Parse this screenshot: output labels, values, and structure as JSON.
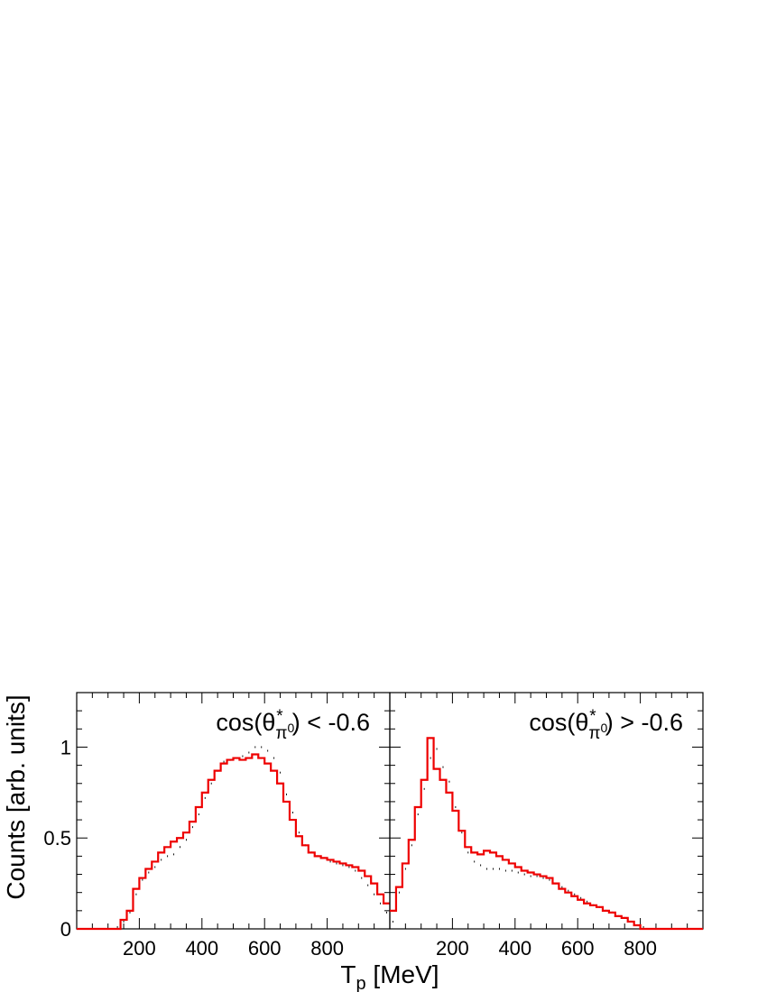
{
  "chart_data": [
    {
      "type": "histogram",
      "panel_label": {
        "prefix": "cos(θ",
        "sub": "π",
        "sup": "0",
        "star": "*",
        "suffix": ") < -0.6"
      },
      "ylabel": "Counts [arb. units]",
      "xlabel_main": "T",
      "xlabel_sub": "p",
      "xlabel_unit": " [MeV]",
      "xlim": [
        0,
        1000
      ],
      "ylim": [
        0,
        1.3
      ],
      "x_ticks": [
        "200",
        "400",
        "600",
        "800"
      ],
      "y_ticks": [
        "0",
        "0.5",
        "1"
      ],
      "bin_width": 20,
      "series": [
        {
          "role": "data-points",
          "color": "#000000",
          "values": [
            0,
            0,
            0,
            0,
            0,
            0,
            0.01,
            0.04,
            0.09,
            0.19,
            0.27,
            0.31,
            0.34,
            0.38,
            0.4,
            0.41,
            0.45,
            0.49,
            0.56,
            0.63,
            0.72,
            0.8,
            0.87,
            0.92,
            0.93,
            0.94,
            0.95,
            0.97,
            1.0,
            1.0,
            0.98,
            0.94,
            0.86,
            0.74,
            0.64,
            0.53,
            0.46,
            0.42,
            0.4,
            0.39,
            0.37,
            0.36,
            0.35,
            0.34,
            0.32,
            0.28,
            0.24,
            0.19,
            0.14,
            0.09
          ]
        },
        {
          "role": "simulation-line",
          "color": "#ee0000",
          "values": [
            0,
            0,
            0,
            0,
            0,
            0,
            0,
            0.05,
            0.1,
            0.22,
            0.28,
            0.33,
            0.37,
            0.42,
            0.45,
            0.48,
            0.5,
            0.53,
            0.59,
            0.67,
            0.75,
            0.82,
            0.87,
            0.91,
            0.93,
            0.94,
            0.93,
            0.94,
            0.96,
            0.94,
            0.91,
            0.87,
            0.8,
            0.7,
            0.6,
            0.51,
            0.46,
            0.42,
            0.4,
            0.39,
            0.38,
            0.37,
            0.36,
            0.35,
            0.34,
            0.32,
            0.29,
            0.25,
            0.19,
            0.14
          ]
        }
      ]
    },
    {
      "type": "histogram",
      "panel_label": {
        "prefix": "cos(θ",
        "sub": "π",
        "sup": "0",
        "star": "*",
        "suffix": ") > -0.6"
      },
      "xlim": [
        0,
        1000
      ],
      "ylim": [
        0,
        1.3
      ],
      "x_ticks": [
        "200",
        "400",
        "600",
        "800"
      ],
      "bin_width": 20,
      "series": [
        {
          "role": "data-points",
          "color": "#000000",
          "values": [
            0.04,
            0.2,
            0.33,
            0.46,
            0.63,
            0.77,
            0.94,
            0.99,
            0.89,
            0.81,
            0.67,
            0.53,
            0.42,
            0.37,
            0.35,
            0.33,
            0.33,
            0.33,
            0.32,
            0.32,
            0.31,
            0.3,
            0.29,
            0.29,
            0.28,
            0.27,
            0.25,
            0.23,
            0.21,
            0.19,
            0.17,
            0.15,
            0.13,
            0.12,
            0.1,
            0.09,
            0.07,
            0.06,
            0.04,
            0.02,
            0.01,
            0,
            0,
            0,
            0,
            0,
            0,
            0,
            0,
            0
          ]
        },
        {
          "role": "simulation-line",
          "color": "#ee0000",
          "values": [
            0.1,
            0.23,
            0.36,
            0.49,
            0.67,
            0.82,
            1.05,
            0.88,
            0.82,
            0.75,
            0.65,
            0.54,
            0.45,
            0.42,
            0.41,
            0.43,
            0.42,
            0.4,
            0.38,
            0.36,
            0.34,
            0.32,
            0.31,
            0.3,
            0.29,
            0.28,
            0.25,
            0.22,
            0.2,
            0.18,
            0.16,
            0.14,
            0.13,
            0.12,
            0.1,
            0.09,
            0.07,
            0.06,
            0.04,
            0.02,
            0,
            0,
            0,
            0,
            0,
            0,
            0,
            0,
            0,
            0
          ]
        }
      ]
    }
  ]
}
